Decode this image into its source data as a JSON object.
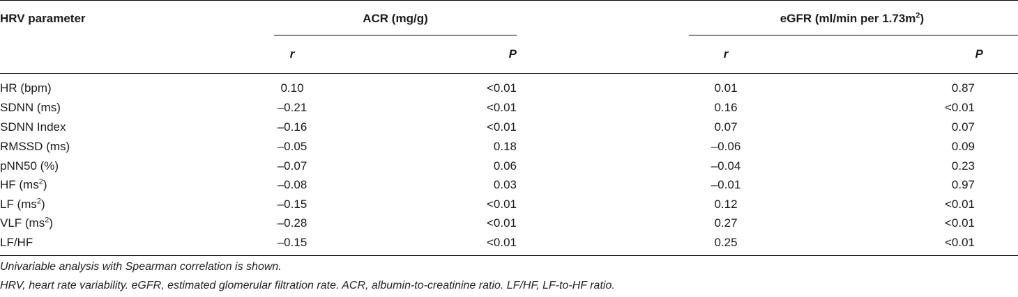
{
  "table": {
    "headers": {
      "parameter": "HRV parameter",
      "acr": "ACR (mg/g)",
      "egfr_base": "eGFR (ml/min per 1.73m",
      "egfr_sup": "2",
      "egfr_close": ")",
      "r": "r",
      "p": "P"
    },
    "rows": [
      {
        "param": "HR (bpm)",
        "sup": "",
        "suffix": "",
        "acr_r": "0.10",
        "acr_p": "<0.01",
        "egfr_r": "0.01",
        "egfr_p": "0.87"
      },
      {
        "param": "SDNN (ms)",
        "sup": "",
        "suffix": "",
        "acr_r": "–0.21",
        "acr_p": "<0.01",
        "egfr_r": "0.16",
        "egfr_p": "<0.01"
      },
      {
        "param": "SDNN Index",
        "sup": "",
        "suffix": "",
        "acr_r": "–0.16",
        "acr_p": "<0.01",
        "egfr_r": "0.07",
        "egfr_p": "0.07"
      },
      {
        "param": "RMSSD (ms)",
        "sup": "",
        "suffix": "",
        "acr_r": "–0.05",
        "acr_p": "0.18",
        "egfr_r": "–0.06",
        "egfr_p": "0.09"
      },
      {
        "param": "pNN50 (%)",
        "sup": "",
        "suffix": "",
        "acr_r": "–0.07",
        "acr_p": "0.06",
        "egfr_r": "–0.04",
        "egfr_p": "0.23"
      },
      {
        "param": "HF (ms",
        "sup": "2",
        "suffix": ")",
        "acr_r": "–0.08",
        "acr_p": "0.03",
        "egfr_r": "–0.01",
        "egfr_p": "0.97"
      },
      {
        "param": "LF (ms",
        "sup": "2",
        "suffix": ")",
        "acr_r": "–0.15",
        "acr_p": "<0.01",
        "egfr_r": "0.12",
        "egfr_p": "<0.01"
      },
      {
        "param": "VLF (ms",
        "sup": "2",
        "suffix": ")",
        "acr_r": "–0.28",
        "acr_p": "<0.01",
        "egfr_r": "0.27",
        "egfr_p": "<0.01"
      },
      {
        "param": "LF/HF",
        "sup": "",
        "suffix": "",
        "acr_r": "–0.15",
        "acr_p": "<0.01",
        "egfr_r": "0.25",
        "egfr_p": "<0.01"
      }
    ]
  },
  "footnotes": {
    "line1": "Univariable analysis with Spearman correlation is shown.",
    "line2": "HRV, heart rate variability. eGFR, estimated glomerular filtration rate. ACR, albumin-to-creatinine ratio. LF/HF, LF-to-HF ratio."
  }
}
